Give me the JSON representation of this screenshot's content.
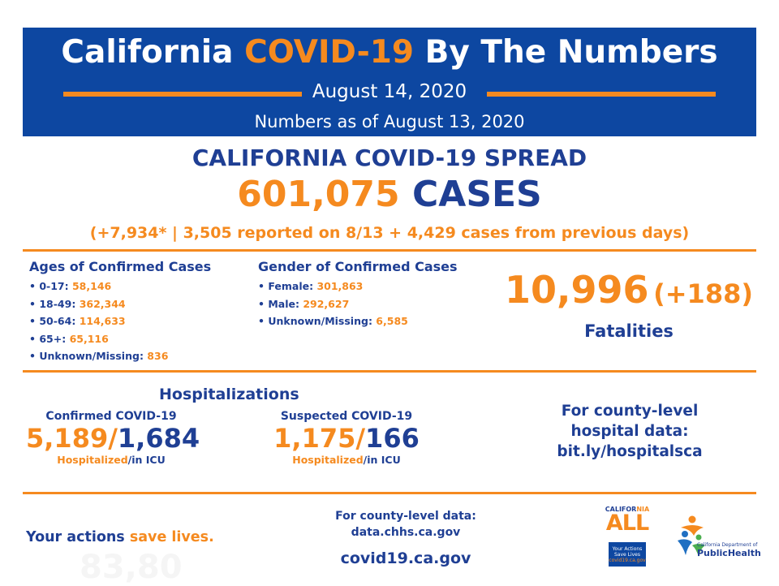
{
  "header": {
    "title_part1": "California ",
    "title_highlight": "COVID-19",
    "title_part2": " By The Numbers",
    "date": "August 14, 2020",
    "as_of": "Numbers as of August 13, 2020"
  },
  "spread": {
    "title": "CALIFORNIA COVID-19 SPREAD",
    "cases_number": "601,075",
    "cases_label": "CASES",
    "detail": "(+7,934* | 3,505 reported on 8/13 + 4,429 cases from previous days)"
  },
  "ages": {
    "title": "Ages of Confirmed Cases",
    "items": [
      {
        "label": "0-17: ",
        "value": "58,146"
      },
      {
        "label": "18-49: ",
        "value": "362,344"
      },
      {
        "label": "50-64: ",
        "value": "114,633"
      },
      {
        "label": "65+: ",
        "value": "65,116"
      },
      {
        "label": "Unknown/Missing: ",
        "value": "836"
      }
    ]
  },
  "gender": {
    "title": "Gender of Confirmed Cases",
    "items": [
      {
        "label": "Female: ",
        "value": "301,863"
      },
      {
        "label": "Male: ",
        "value": "292,627"
      },
      {
        "label": "Unknown/Missing: ",
        "value": "6,585"
      }
    ]
  },
  "fatalities": {
    "number": "10,996",
    "change": "(+188)",
    "label": "Fatalities"
  },
  "hospitalizations": {
    "title": "Hospitalizations",
    "confirmed": {
      "subtitle": "Confirmed COVID-19",
      "hospitalized": "5,189",
      "icu": "1,684",
      "cap_hosp": "Hospitalized",
      "cap_icu": "/in ICU"
    },
    "suspected": {
      "subtitle": "Suspected COVID-19",
      "hospitalized": "1,175",
      "icu": "166",
      "cap_hosp": "Hospitalized",
      "cap_icu": "/in ICU"
    },
    "county_line1": "For county-level",
    "county_line2": "hospital data:",
    "county_link": "bit.ly/hospitalsca"
  },
  "footer": {
    "actions_part1": "Your actions ",
    "actions_part2": "save lives.",
    "faint_text": "83,80",
    "county_data_line1": "For county-level data:",
    "county_data_line2": "data.chhs.ca.gov",
    "website": "covid19.ca.gov"
  },
  "logos": {
    "ca_all": {
      "top_text_part1": "CALIFOR",
      "top_text_highlight": "NIA",
      "main": "ALL",
      "box_line1": "Your Actions",
      "box_line2": "Save Lives",
      "box_line3": "covid19.ca.gov"
    },
    "cdph": {
      "dept": "California Department of",
      "name_part1": "Public",
      "name_part2": "Health"
    }
  },
  "colors": {
    "brand_blue": "#0d47a1",
    "text_blue": "#1f3f94",
    "accent_orange": "#f58a1f",
    "cdph_green": "#4caf50"
  }
}
